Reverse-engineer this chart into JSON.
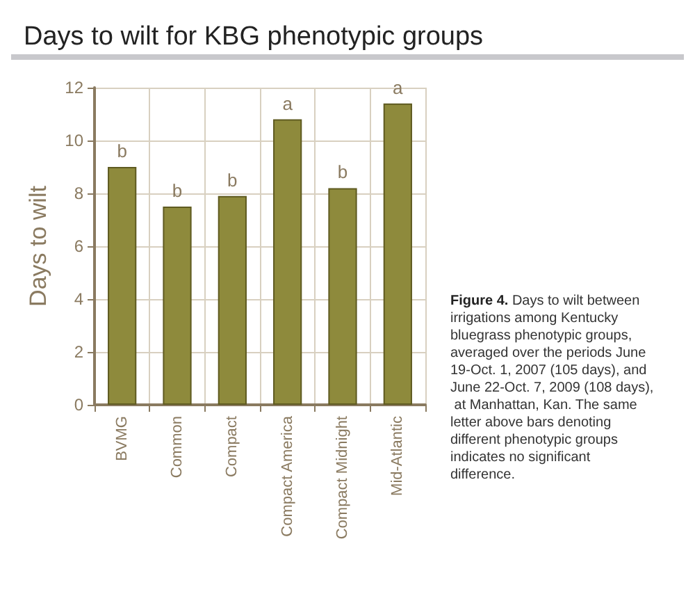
{
  "chart_data": {
    "type": "bar",
    "title": "Days to wilt for KBG phenotypic groups",
    "ylabel": "Days to wilt",
    "categories": [
      "BVMG",
      "Common",
      "Compact",
      "Compact America",
      "Compact Midnight",
      "Mid-Atlantic"
    ],
    "values": [
      9.0,
      7.5,
      7.9,
      10.8,
      8.2,
      11.4
    ],
    "value_labels": [
      "b",
      "b",
      "b",
      "a",
      "b",
      "a"
    ],
    "color": "#8e8a3c",
    "ylim": [
      0,
      12
    ],
    "yticks": [
      0,
      2,
      4,
      6,
      8,
      10,
      12
    ],
    "grid": true,
    "annotations": [
      "Figure 4. Days to wilt between irrigations among Kentucky bluegrass phenotypic groups, averaged over the periods June 19-Oct. 1, 2007 (105 days), and June 22-Oct. 7, 2009 (108 days), at Manhattan, Kan. The same letter above bars denoting different phenotypic groups indicates no significant difference."
    ]
  }
}
